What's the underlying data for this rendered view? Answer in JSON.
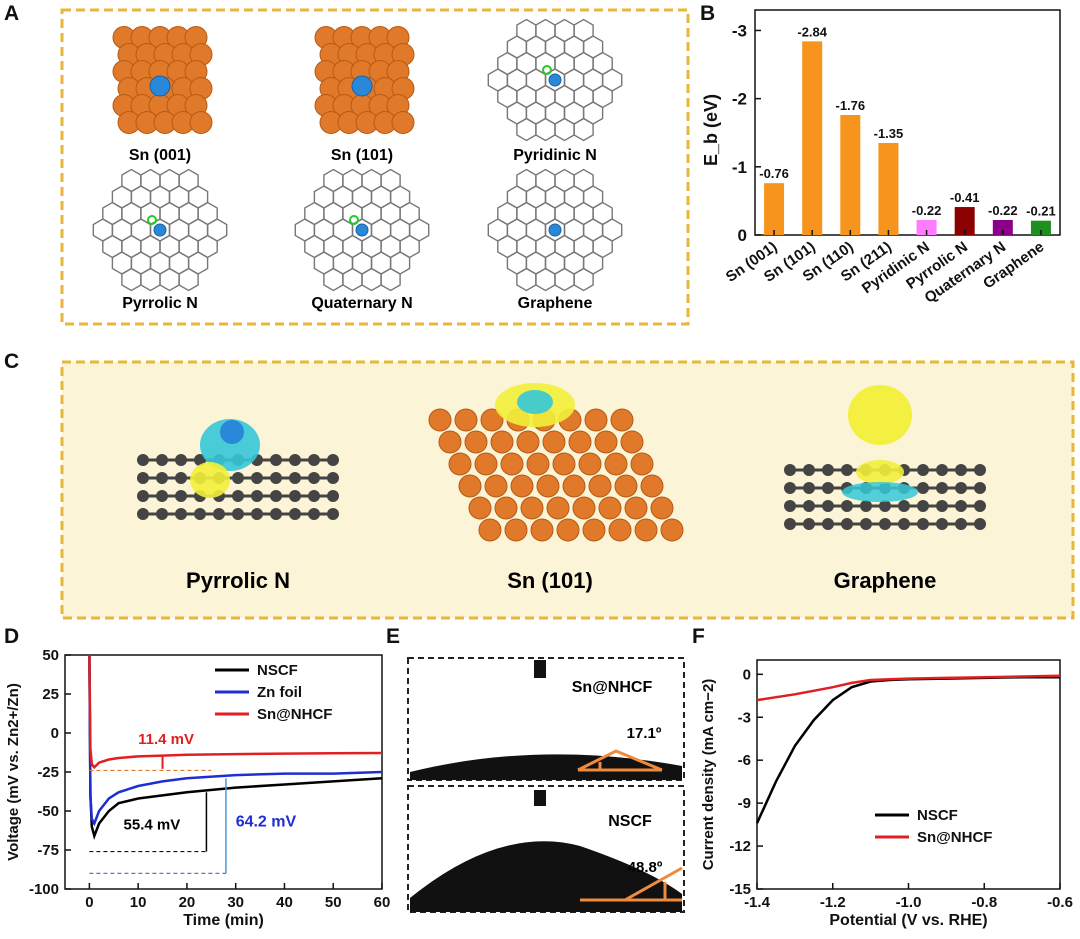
{
  "panels": {
    "A": "A",
    "B": "B",
    "C": "C",
    "D": "D",
    "E": "E",
    "F": "F"
  },
  "panelA": {
    "captions": [
      "Sn (001)",
      "Sn (101)",
      "Pyridinic N",
      "Pyrrolic N",
      "Quaternary N",
      "Graphene"
    ]
  },
  "panelC": {
    "captions": [
      "Pyrrolic N",
      "Sn (101)",
      "Graphene"
    ]
  },
  "panelE": {
    "top_label": "Sn@NHCF",
    "top_angle": "17.1º",
    "bottom_label": "NSCF",
    "bottom_angle": "48.8º"
  },
  "colors": {
    "frame": "#e8b73a",
    "tin": "#e07a2a",
    "blue_atom": "#2a88d8",
    "carbon": "#555555",
    "yellow_iso": "#f2ef3a",
    "cyan_iso": "#35c8d8",
    "nscf": "#000000",
    "zn": "#1f2ed1",
    "sn": "#e02020"
  },
  "chart_data": [
    {
      "panel": "B",
      "type": "bar",
      "categories": [
        "Sn (001)",
        "Sn (101)",
        "Sn (110)",
        "Sn (211)",
        "Pyridinic N",
        "Pyrrolic N",
        "Quaternary N",
        "Graphene"
      ],
      "values": [
        -0.76,
        -2.84,
        -1.76,
        -1.35,
        -0.22,
        -0.41,
        -0.22,
        -0.21
      ],
      "value_labels": [
        "-0.76",
        "-2.84",
        "-1.76",
        "-1.35",
        "-0.22",
        "-0.41",
        "-0.22",
        "-0.21"
      ],
      "bar_colors": [
        "#f7941d",
        "#f7941d",
        "#f7941d",
        "#f7941d",
        "#ff7bff",
        "#8b0000",
        "#8b008b",
        "#1f8f1f"
      ],
      "ylabel": "E_b (eV)",
      "ylim": [
        0,
        -3.3
      ],
      "yticks": [
        0,
        -1,
        -2,
        -3
      ],
      "ytick_labels": [
        "0",
        "-1",
        "-2",
        "-3"
      ],
      "inverted_y": true
    },
    {
      "panel": "D",
      "type": "line",
      "xlabel": "Time (min)",
      "ylabel": "Voltage (mV vs. Zn2+/Zn)",
      "xlim": [
        -5,
        60
      ],
      "ylim": [
        -100,
        50
      ],
      "xticks": [
        0,
        10,
        20,
        30,
        40,
        50,
        60
      ],
      "yticks": [
        -100,
        -75,
        -50,
        -25,
        0,
        25,
        50
      ],
      "series": [
        {
          "name": "NSCF",
          "color": "#000000",
          "x": [
            0,
            0.2,
            0.5,
            1,
            2,
            4,
            6,
            10,
            15,
            20,
            30,
            40,
            50,
            60
          ],
          "y": [
            50,
            -40,
            -60,
            -66,
            -58,
            -50,
            -45,
            -42,
            -40,
            -38,
            -35,
            -33,
            -31,
            -29
          ]
        },
        {
          "name": "Zn foil",
          "color": "#1f2ed1",
          "x": [
            0,
            0.2,
            0.5,
            1,
            2,
            4,
            6,
            10,
            15,
            20,
            30,
            40,
            50,
            60
          ],
          "y": [
            50,
            -40,
            -55,
            -58,
            -50,
            -42,
            -38,
            -34,
            -31,
            -29,
            -27,
            -26,
            -26,
            -25
          ]
        },
        {
          "name": "Sn@NHCF",
          "color": "#e02020",
          "x": [
            0,
            0.2,
            0.5,
            1,
            2,
            4,
            6,
            10,
            15,
            20,
            30,
            40,
            50,
            60
          ],
          "y": [
            50,
            -10,
            -20,
            -22,
            -19,
            -17,
            -16,
            -15,
            -14.5,
            -14,
            -13.5,
            -13.2,
            -13,
            -12.8
          ]
        }
      ],
      "annotations": [
        "11.4 mV",
        "55.4 mV",
        "64.2 mV"
      ],
      "annotation_colors": [
        "#e02020",
        "#000000",
        "#1f2ed1"
      ],
      "legend": "top-right"
    },
    {
      "panel": "F",
      "type": "line",
      "xlabel": "Potential (V vs. RHE)",
      "ylabel": "Current density (mA cm−2)",
      "xlim": [
        -1.4,
        -0.6
      ],
      "ylim": [
        -15,
        1
      ],
      "xticks": [
        -1.4,
        -1.2,
        -1.0,
        -0.8,
        -0.6
      ],
      "xtick_labels": [
        "-1.4",
        "-1.2",
        "-1.0",
        "-0.8",
        "-0.6"
      ],
      "yticks": [
        -15,
        -12,
        -9,
        -6,
        -3,
        0
      ],
      "series": [
        {
          "name": "NSCF",
          "color": "#000000",
          "x": [
            -1.4,
            -1.35,
            -1.3,
            -1.25,
            -1.2,
            -1.15,
            -1.1,
            -1.05,
            -1.0,
            -0.9,
            -0.8,
            -0.7,
            -0.6
          ],
          "y": [
            -10.4,
            -7.5,
            -5.0,
            -3.2,
            -1.8,
            -0.9,
            -0.5,
            -0.4,
            -0.35,
            -0.3,
            -0.25,
            -0.2,
            -0.2
          ]
        },
        {
          "name": "Sn@NHCF",
          "color": "#e02020",
          "x": [
            -1.4,
            -1.3,
            -1.2,
            -1.15,
            -1.1,
            -1.05,
            -1.0,
            -0.9,
            -0.8,
            -0.7,
            -0.6
          ],
          "y": [
            -1.8,
            -1.4,
            -0.9,
            -0.6,
            -0.4,
            -0.35,
            -0.3,
            -0.25,
            -0.2,
            -0.15,
            -0.1
          ]
        }
      ],
      "legend": "bottom-right"
    }
  ]
}
